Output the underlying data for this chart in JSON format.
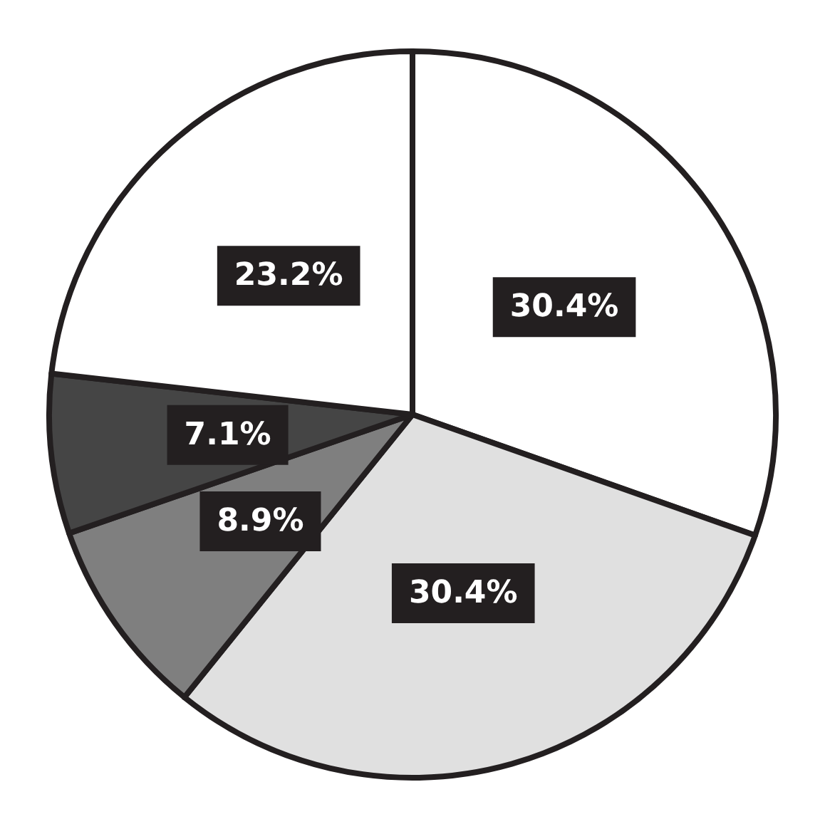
{
  "chart_data": {
    "type": "pie",
    "categories": [
      null,
      null,
      null,
      null,
      null
    ],
    "values": [
      30.4,
      30.4,
      8.9,
      7.1,
      23.2
    ],
    "value_labels": [
      "30.4%",
      "30.4%",
      "8.9%",
      "7.1%",
      "23.2%"
    ],
    "colors": [
      "#ffffff",
      "#e0e0e0",
      "#7f7f7f",
      "#454545",
      "#ffffff"
    ]
  }
}
